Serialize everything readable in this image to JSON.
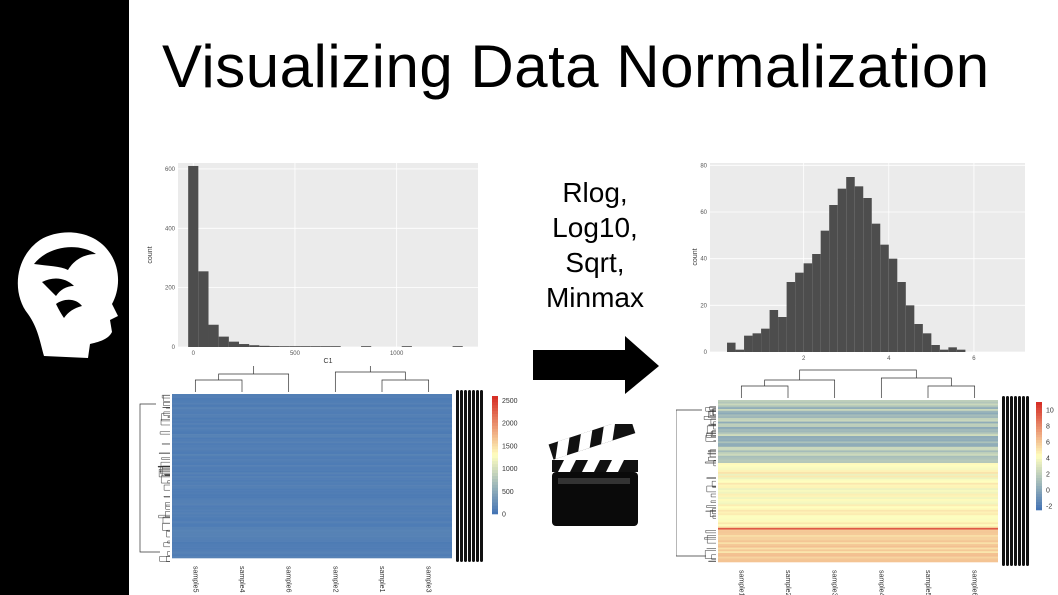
{
  "slide": {
    "title": "Visualizing Data Normalization",
    "methods": [
      "Rlog,",
      "Log10,",
      "Sqrt,",
      "Minmax"
    ]
  },
  "icons": {
    "logo": "head-silhouette-logo-icon",
    "arrow": "right-arrow-icon",
    "clapperboard": "clapperboard-icon"
  },
  "colors": {
    "sidebar": "#000000",
    "histogram_bar": "#4d4d4d",
    "plot_panel": "#ebebeb",
    "heatmap_low": "#4575b4",
    "heatmap_mid": "#ffffbf",
    "heatmap_high": "#d73027"
  },
  "chart_data": [
    {
      "type": "bar",
      "subtype": "histogram",
      "title": "",
      "xlabel": "C1",
      "ylabel": "count",
      "x_ticks": [
        "0",
        "500",
        "1000"
      ],
      "y_ticks": [
        "0",
        "200",
        "400",
        "600"
      ],
      "xlim": [
        -75,
        1400
      ],
      "ylim": [
        0,
        620
      ],
      "bin_width": 50,
      "bin_start": -25,
      "values": [
        610,
        255,
        75,
        35,
        18,
        10,
        6,
        4,
        3,
        2,
        2,
        1,
        1,
        2,
        1,
        0,
        0,
        1,
        0,
        0,
        0,
        1,
        0,
        0,
        0,
        0,
        1,
        0
      ],
      "grid": true
    },
    {
      "type": "bar",
      "subtype": "histogram",
      "title": "",
      "xlabel": "",
      "ylabel": "count",
      "x_ticks": [
        "2",
        "4",
        "6"
      ],
      "y_ticks": [
        "0",
        "20",
        "40",
        "60",
        "80"
      ],
      "xlim": [
        -0.2,
        7.2
      ],
      "ylim": [
        0,
        81
      ],
      "bin_width": 0.2,
      "bin_start": 0.2,
      "values": [
        4,
        1,
        7,
        8,
        10,
        18,
        15,
        30,
        34,
        38,
        42,
        52,
        63,
        70,
        75,
        71,
        66,
        55,
        46,
        40,
        30,
        20,
        12,
        8,
        3,
        1,
        2,
        1
      ],
      "grid": true
    },
    {
      "type": "heatmap",
      "title": "",
      "columns": [
        "sample5",
        "sample4",
        "sample6",
        "sample2",
        "sample1",
        "sample3"
      ],
      "legend_ticks": [
        "0",
        "500",
        "1000",
        "1500",
        "2000",
        "2500"
      ],
      "legend_range": [
        0,
        2600
      ],
      "row_dendrogram": true,
      "column_dendrogram": true
    },
    {
      "type": "heatmap",
      "title": "",
      "columns": [
        "sample1",
        "sample2",
        "sample3",
        "sample4",
        "sample5",
        "sample6"
      ],
      "legend_ticks": [
        "-2",
        "0",
        "2",
        "4",
        "6",
        "8",
        "10"
      ],
      "legend_range": [
        -2.5,
        11
      ],
      "row_dendrogram": true,
      "column_dendrogram": true
    }
  ]
}
